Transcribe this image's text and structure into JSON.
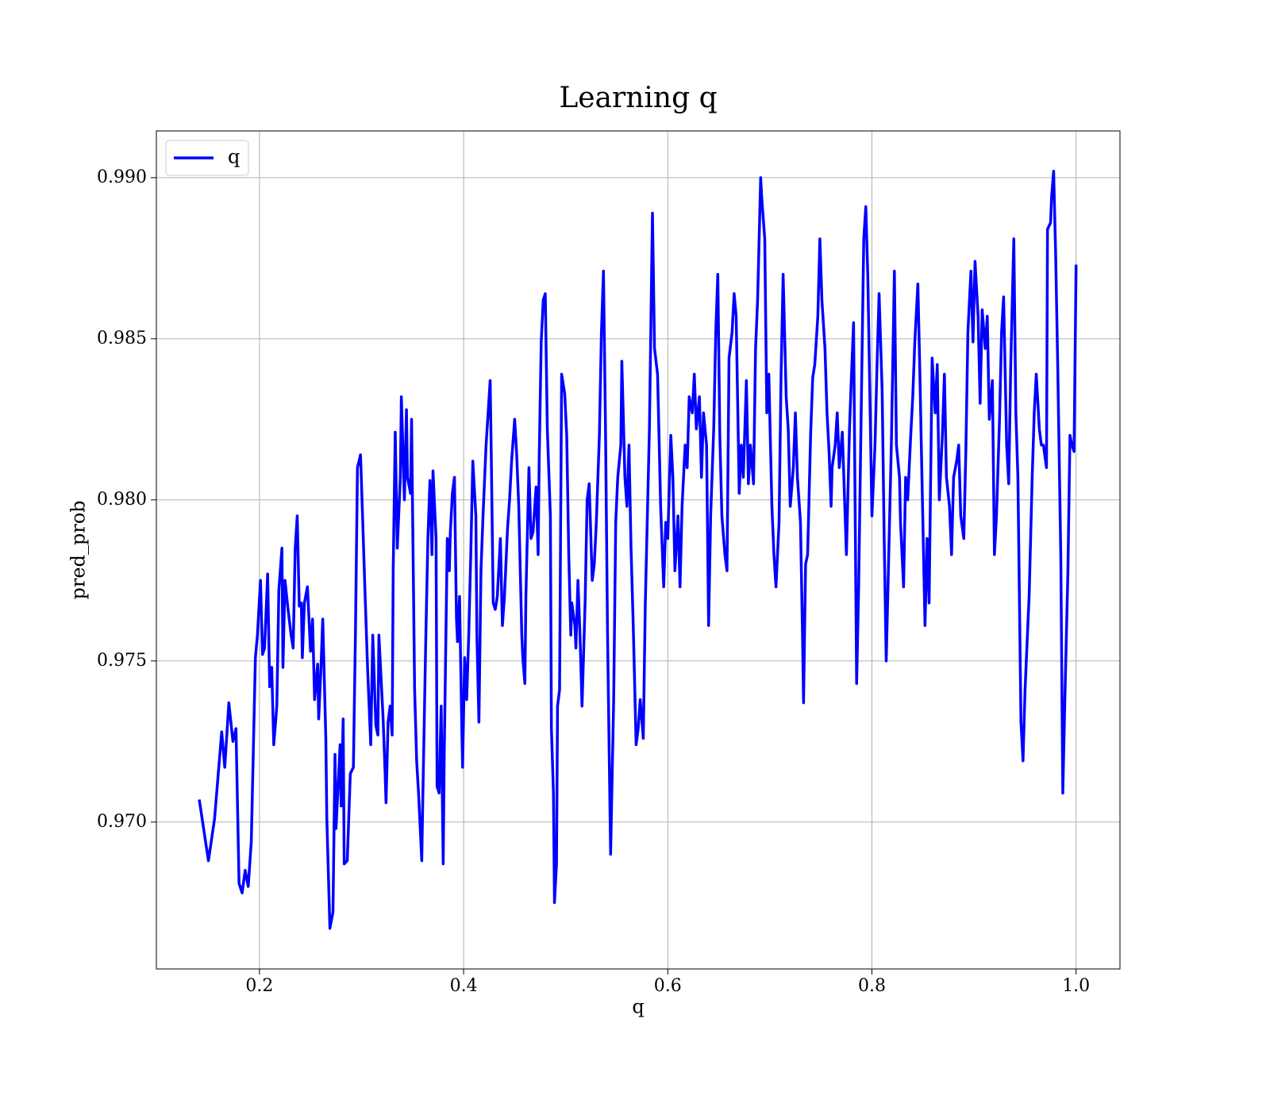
{
  "chart_data": {
    "type": "line",
    "title": "Learning q",
    "xlabel": "q",
    "ylabel": "pred_prob",
    "x": [
      0.141,
      0.15,
      0.156,
      0.163,
      0.166,
      0.17,
      0.174,
      0.177,
      0.18,
      0.183,
      0.186,
      0.189,
      0.192,
      0.196,
      0.198,
      0.201,
      0.203,
      0.205,
      0.208,
      0.21,
      0.212,
      0.214,
      0.217,
      0.219,
      0.222,
      0.223,
      0.225,
      0.228,
      0.231,
      0.233,
      0.235,
      0.237,
      0.239,
      0.241,
      0.242,
      0.244,
      0.247,
      0.25,
      0.252,
      0.254,
      0.257,
      0.258,
      0.26,
      0.262,
      0.265,
      0.266,
      0.269,
      0.272,
      0.274,
      0.275,
      0.279,
      0.28,
      0.282,
      0.283,
      0.286,
      0.289,
      0.292,
      0.294,
      0.296,
      0.299,
      0.301,
      0.303,
      0.306,
      0.309,
      0.311,
      0.314,
      0.316,
      0.317,
      0.321,
      0.323,
      0.324,
      0.326,
      0.328,
      0.33,
      0.331,
      0.333,
      0.335,
      0.338,
      0.339,
      0.342,
      0.344,
      0.345,
      0.348,
      0.349,
      0.352,
      0.354,
      0.356,
      0.359,
      0.36,
      0.363,
      0.365,
      0.367,
      0.369,
      0.37,
      0.373,
      0.374,
      0.376,
      0.378,
      0.38,
      0.381,
      0.384,
      0.386,
      0.387,
      0.389,
      0.391,
      0.393,
      0.394,
      0.396,
      0.398,
      0.399,
      0.401,
      0.403,
      0.405,
      0.407,
      0.409,
      0.412,
      0.413,
      0.415,
      0.417,
      0.419,
      0.422,
      0.424,
      0.426,
      0.427,
      0.429,
      0.431,
      0.433,
      0.436,
      0.438,
      0.44,
      0.443,
      0.445,
      0.447,
      0.45,
      0.452,
      0.454,
      0.457,
      0.458,
      0.46,
      0.461,
      0.464,
      0.466,
      0.468,
      0.471,
      0.473,
      0.474,
      0.476,
      0.478,
      0.48,
      0.482,
      0.485,
      0.486,
      0.488,
      0.489,
      0.491,
      0.492,
      0.494,
      0.496,
      0.499,
      0.501,
      0.503,
      0.505,
      0.506,
      0.509,
      0.51,
      0.512,
      0.514,
      0.516,
      0.519,
      0.521,
      0.523,
      0.526,
      0.528,
      0.53,
      0.533,
      0.535,
      0.537,
      0.539,
      0.541,
      0.544,
      0.547,
      0.549,
      0.551,
      0.554,
      0.555,
      0.558,
      0.56,
      0.562,
      0.564,
      0.566,
      0.569,
      0.571,
      0.573,
      0.576,
      0.578,
      0.58,
      0.582,
      0.583,
      0.585,
      0.587,
      0.59,
      0.592,
      0.593,
      0.596,
      0.598,
      0.6,
      0.603,
      0.605,
      0.607,
      0.61,
      0.612,
      0.614,
      0.617,
      0.619,
      0.621,
      0.624,
      0.626,
      0.628,
      0.631,
      0.633,
      0.635,
      0.638,
      0.64,
      0.642,
      0.645,
      0.647,
      0.649,
      0.651,
      0.653,
      0.656,
      0.658,
      0.66,
      0.663,
      0.665,
      0.667,
      0.67,
      0.672,
      0.674,
      0.677,
      0.679,
      0.681,
      0.684,
      0.686,
      0.688,
      0.691,
      0.692,
      0.695,
      0.697,
      0.699,
      0.702,
      0.704,
      0.706,
      0.709,
      0.711,
      0.713,
      0.716,
      0.718,
      0.72,
      0.723,
      0.725,
      0.727,
      0.73,
      0.732,
      0.733,
      0.735,
      0.737,
      0.74,
      0.742,
      0.744,
      0.747,
      0.749,
      0.751,
      0.754,
      0.756,
      0.758,
      0.76,
      0.761,
      0.764,
      0.766,
      0.768,
      0.771,
      0.773,
      0.775,
      0.778,
      0.78,
      0.782,
      0.785,
      0.787,
      0.789,
      0.792,
      0.794,
      0.796,
      0.798,
      0.8,
      0.803,
      0.805,
      0.807,
      0.81,
      0.812,
      0.814,
      0.817,
      0.819,
      0.822,
      0.824,
      0.827,
      0.828,
      0.831,
      0.833,
      0.835,
      0.838,
      0.84,
      0.842,
      0.845,
      0.847,
      0.849,
      0.852,
      0.854,
      0.856,
      0.859,
      0.862,
      0.864,
      0.866,
      0.869,
      0.871,
      0.873,
      0.876,
      0.878,
      0.88,
      0.883,
      0.885,
      0.887,
      0.89,
      0.892,
      0.894,
      0.897,
      0.899,
      0.901,
      0.904,
      0.906,
      0.908,
      0.911,
      0.913,
      0.915,
      0.918,
      0.92,
      0.922,
      0.925,
      0.927,
      0.929,
      0.932,
      0.934,
      0.936,
      0.939,
      0.941,
      0.943,
      0.946,
      0.948,
      0.95,
      0.953,
      0.954,
      0.957,
      0.959,
      0.961,
      0.964,
      0.966,
      0.968,
      0.971,
      0.972,
      0.975,
      0.976,
      0.978,
      0.98,
      0.982,
      0.985,
      0.987,
      0.989,
      0.992,
      0.994,
      0.996,
      0.998,
      1.0
    ],
    "series": [
      {
        "name": "q",
        "color": "#0000ff",
        "values": [
          0.9707,
          0.9688,
          0.9701,
          0.9728,
          0.9717,
          0.9737,
          0.9725,
          0.9729,
          0.9681,
          0.9678,
          0.9685,
          0.968,
          0.9694,
          0.9751,
          0.9758,
          0.9775,
          0.9752,
          0.9754,
          0.9777,
          0.9742,
          0.9748,
          0.9724,
          0.9736,
          0.9772,
          0.9785,
          0.9748,
          0.9775,
          0.9766,
          0.9758,
          0.9754,
          0.9785,
          0.9795,
          0.9767,
          0.9768,
          0.9751,
          0.9768,
          0.9773,
          0.9753,
          0.9763,
          0.9738,
          0.9749,
          0.9732,
          0.9746,
          0.9763,
          0.9726,
          0.9701,
          0.9667,
          0.9672,
          0.9721,
          0.9698,
          0.9724,
          0.9705,
          0.9732,
          0.9687,
          0.9688,
          0.9715,
          0.9717,
          0.9758,
          0.981,
          0.9814,
          0.9795,
          0.9775,
          0.9747,
          0.9724,
          0.9758,
          0.973,
          0.9727,
          0.9758,
          0.9733,
          0.9716,
          0.9706,
          0.9731,
          0.9736,
          0.9727,
          0.9778,
          0.9821,
          0.9785,
          0.9807,
          0.9832,
          0.98,
          0.9828,
          0.9807,
          0.9802,
          0.9825,
          0.9741,
          0.9719,
          0.9708,
          0.9688,
          0.9707,
          0.9758,
          0.9788,
          0.9806,
          0.9783,
          0.9809,
          0.9788,
          0.9711,
          0.9709,
          0.9736,
          0.9687,
          0.9721,
          0.9788,
          0.9778,
          0.979,
          0.9802,
          0.9807,
          0.9763,
          0.9756,
          0.977,
          0.9733,
          0.9717,
          0.9751,
          0.9738,
          0.9758,
          0.9783,
          0.9812,
          0.9795,
          0.9758,
          0.9731,
          0.9778,
          0.9795,
          0.9817,
          0.9827,
          0.9837,
          0.9816,
          0.9768,
          0.9766,
          0.977,
          0.9788,
          0.9761,
          0.977,
          0.9791,
          0.98,
          0.9812,
          0.9825,
          0.9814,
          0.9798,
          0.9758,
          0.9751,
          0.9743,
          0.977,
          0.981,
          0.9788,
          0.979,
          0.9804,
          0.9783,
          0.9812,
          0.9849,
          0.9862,
          0.9864,
          0.9822,
          0.9795,
          0.9729,
          0.9709,
          0.9675,
          0.9687,
          0.9736,
          0.9741,
          0.9839,
          0.9833,
          0.982,
          0.9783,
          0.9758,
          0.9768,
          0.9761,
          0.9754,
          0.9775,
          0.9758,
          0.9736,
          0.9768,
          0.98,
          0.9805,
          0.9775,
          0.978,
          0.9793,
          0.982,
          0.9852,
          0.9871,
          0.9822,
          0.9758,
          0.969,
          0.9738,
          0.9793,
          0.9807,
          0.9817,
          0.9843,
          0.9807,
          0.9798,
          0.9817,
          0.9785,
          0.9763,
          0.9724,
          0.9729,
          0.9738,
          0.9726,
          0.9768,
          0.9795,
          0.9822,
          0.9844,
          0.9889,
          0.9847,
          0.9839,
          0.9812,
          0.9798,
          0.9773,
          0.9793,
          0.9788,
          0.982,
          0.9807,
          0.9778,
          0.9795,
          0.9773,
          0.9798,
          0.9817,
          0.981,
          0.9832,
          0.9827,
          0.9839,
          0.9822,
          0.9832,
          0.9807,
          0.9827,
          0.9817,
          0.9761,
          0.9795,
          0.9822,
          0.9852,
          0.987,
          0.982,
          0.9795,
          0.9783,
          0.9778,
          0.9844,
          0.9852,
          0.9864,
          0.9857,
          0.9802,
          0.9817,
          0.9807,
          0.9837,
          0.9805,
          0.9817,
          0.9805,
          0.9847,
          0.9862,
          0.99,
          0.9894,
          0.9881,
          0.9827,
          0.9839,
          0.9798,
          0.9783,
          0.9773,
          0.9793,
          0.9839,
          0.987,
          0.9832,
          0.9822,
          0.9798,
          0.981,
          0.9827,
          0.9807,
          0.9793,
          0.9758,
          0.9737,
          0.978,
          0.9783,
          0.9821,
          0.9838,
          0.9842,
          0.9857,
          0.9881,
          0.9862,
          0.9847,
          0.9827,
          0.9815,
          0.9798,
          0.981,
          0.9817,
          0.9827,
          0.981,
          0.9821,
          0.9802,
          0.9783,
          0.9822,
          0.9839,
          0.9855,
          0.9743,
          0.9773,
          0.9817,
          0.9881,
          0.9891,
          0.9869,
          0.9832,
          0.9795,
          0.9817,
          0.9842,
          0.9864,
          0.9834,
          0.9788,
          0.975,
          0.979,
          0.9817,
          0.9871,
          0.9817,
          0.9807,
          0.9793,
          0.9773,
          0.9807,
          0.98,
          0.982,
          0.9832,
          0.9849,
          0.9867,
          0.9839,
          0.9807,
          0.9761,
          0.9788,
          0.9768,
          0.9844,
          0.9827,
          0.9842,
          0.98,
          0.982,
          0.9839,
          0.9807,
          0.9798,
          0.9783,
          0.9807,
          0.9812,
          0.9817,
          0.9795,
          0.9788,
          0.9815,
          0.9852,
          0.9871,
          0.9849,
          0.9874,
          0.9857,
          0.983,
          0.9859,
          0.9847,
          0.9857,
          0.9825,
          0.9837,
          0.9783,
          0.9795,
          0.9825,
          0.9852,
          0.9863,
          0.9817,
          0.9805,
          0.9842,
          0.9881,
          0.9827,
          0.9807,
          0.9731,
          0.9719,
          0.9741,
          0.9763,
          0.977,
          0.9807,
          0.9827,
          0.9839,
          0.9822,
          0.9817,
          0.9817,
          0.981,
          0.9884,
          0.9886,
          0.9894,
          0.9902,
          0.9876,
          0.9842,
          0.9783,
          0.9709,
          0.9738,
          0.9778,
          0.982,
          0.9817,
          0.9815,
          0.9873
        ]
      }
    ],
    "xlim": [
      0.099,
      1.043
    ],
    "ylim": [
      0.96544,
      0.99145
    ],
    "xticks": [
      0.2,
      0.4,
      0.6,
      0.8,
      {
        "value": 1.0,
        "label": "1.0"
      }
    ],
    "yticks": [
      {
        "value": 0.97,
        "label": "0.970"
      },
      {
        "value": 0.975,
        "label": "0.975"
      },
      {
        "value": 0.98,
        "label": "0.980"
      },
      {
        "value": 0.985,
        "label": "0.985"
      },
      {
        "value": 0.99,
        "label": "0.990"
      }
    ],
    "grid": true,
    "legend": "upper left"
  }
}
